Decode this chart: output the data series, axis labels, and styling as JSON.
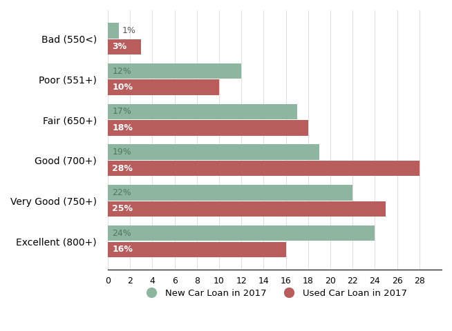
{
  "categories": [
    "Bad (550<)",
    "Poor (551+)",
    "Fair (650+)",
    "Good (700+)",
    "Very Good (750+)",
    "Excellent (800+)"
  ],
  "new_car_values": [
    1,
    12,
    17,
    19,
    22,
    24
  ],
  "used_car_values": [
    3,
    10,
    18,
    28,
    25,
    16
  ],
  "new_car_color": "#8db5a0",
  "used_car_color": "#b85c5c",
  "new_car_label": "New Car Loan in 2017",
  "used_car_label": "Used Car Loan in 2017",
  "xlim": [
    0,
    30
  ],
  "xticks": [
    0,
    2,
    4,
    6,
    8,
    10,
    12,
    14,
    16,
    18,
    20,
    22,
    24,
    26,
    28
  ],
  "bar_height": 0.38,
  "bar_gap": 0.02,
  "background_color": "#ffffff",
  "new_label_color": "#4a7a5a",
  "used_label_color": "#ffffff",
  "label_fontsize": 9,
  "category_fontsize": 10,
  "tick_fontsize": 9
}
